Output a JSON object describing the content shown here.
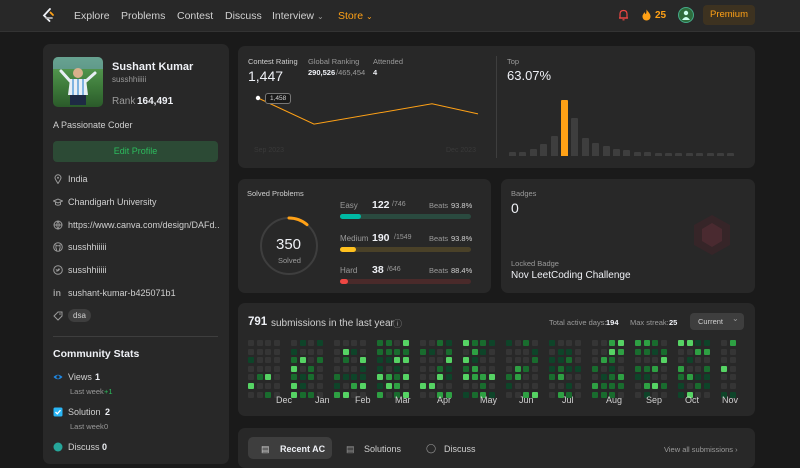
{
  "nav": {
    "items": [
      "Explore",
      "Problems",
      "Contest",
      "Discuss"
    ],
    "interview_label": "Interview",
    "store_label": "Store",
    "streak": "25",
    "premium_label": "Premium"
  },
  "profile": {
    "name": "Sushant Kumar",
    "username": "susshhiiiii",
    "rank_label": "Rank",
    "rank_value": "164,491",
    "bio": "A Passionate Coder",
    "edit_label": "Edit Profile",
    "location": "India",
    "university": "Chandigarh University",
    "website": "https://www.canva.com/design/DAFd...",
    "github": "susshhiiiii",
    "twitter": "susshhiiiii",
    "linkedin": "sushant-kumar-b425071b1",
    "skill_tag": "dsa"
  },
  "community": {
    "title": "Community Stats",
    "views_label": "Views",
    "views_value": "1",
    "views_week_label": "Last week",
    "views_week_delta": "+1",
    "solution_label": "Solution",
    "solution_value": "2",
    "solution_week_label": "Last week",
    "solution_week_delta": "0",
    "discuss_label": "Discuss",
    "discuss_value": "0"
  },
  "contest": {
    "rating_label": "Contest Rating",
    "rating_value": "1,447",
    "ranking_label": "Global Ranking",
    "ranking_value": "290,526",
    "ranking_total": "/465,454",
    "attended_label": "Attended",
    "attended_value": "4",
    "tooltip": "1,458",
    "axis_start": "Sep 2023",
    "axis_end": "Dec 2023",
    "ratings": [
      1458,
      1440,
      1454,
      1447
    ],
    "top_label": "Top",
    "top_value": "63.07%",
    "histogram": [
      4,
      4,
      6,
      11,
      18,
      50,
      34,
      16,
      12,
      9,
      6,
      5,
      4,
      4,
      3,
      3,
      2,
      2,
      2,
      2,
      1,
      1
    ]
  },
  "solved": {
    "title": "Solved Problems",
    "total": "350",
    "total_label": "Solved",
    "easy": {
      "label": "Easy",
      "count": "122",
      "total": "/746",
      "beats_label": "Beats",
      "beats": "93.8%",
      "color": "#00b8a3",
      "fraction": 0.1635
    },
    "medium": {
      "label": "Medium",
      "count": "190",
      "total": "/1549",
      "beats_label": "Beats",
      "beats": "93.8%",
      "color": "#ffc01e",
      "fraction": 0.1227
    },
    "hard": {
      "label": "Hard",
      "count": "38",
      "total": "/646",
      "beats_label": "Beats",
      "beats": "88.4%",
      "color": "#ef4743",
      "fraction": 0.0588
    }
  },
  "badges": {
    "label": "Badges",
    "count": "0",
    "locked_label": "Locked Badge",
    "locked_name": "Nov LeetCoding Challenge"
  },
  "submissions": {
    "count": "791",
    "suffix": "submissions in the last year",
    "active_days_label": "Total active days:",
    "active_days": "194",
    "max_streak_label": "Max streak:",
    "max_streak": "25",
    "selector": "Current",
    "months": [
      "Dec",
      "Jan",
      "Feb",
      "Mar",
      "Apr",
      "May",
      "Jun",
      "Jul",
      "Aug",
      "Sep",
      "Oct",
      "Nov"
    ]
  },
  "tabs": {
    "recent": "Recent AC",
    "solutions": "Solutions",
    "discuss": "Discuss",
    "view_all": "View all submissions"
  },
  "colors": {
    "accent": "#ffa116",
    "green": "#2cbb5d",
    "card": "#282828",
    "bg": "#1a1a1a"
  }
}
